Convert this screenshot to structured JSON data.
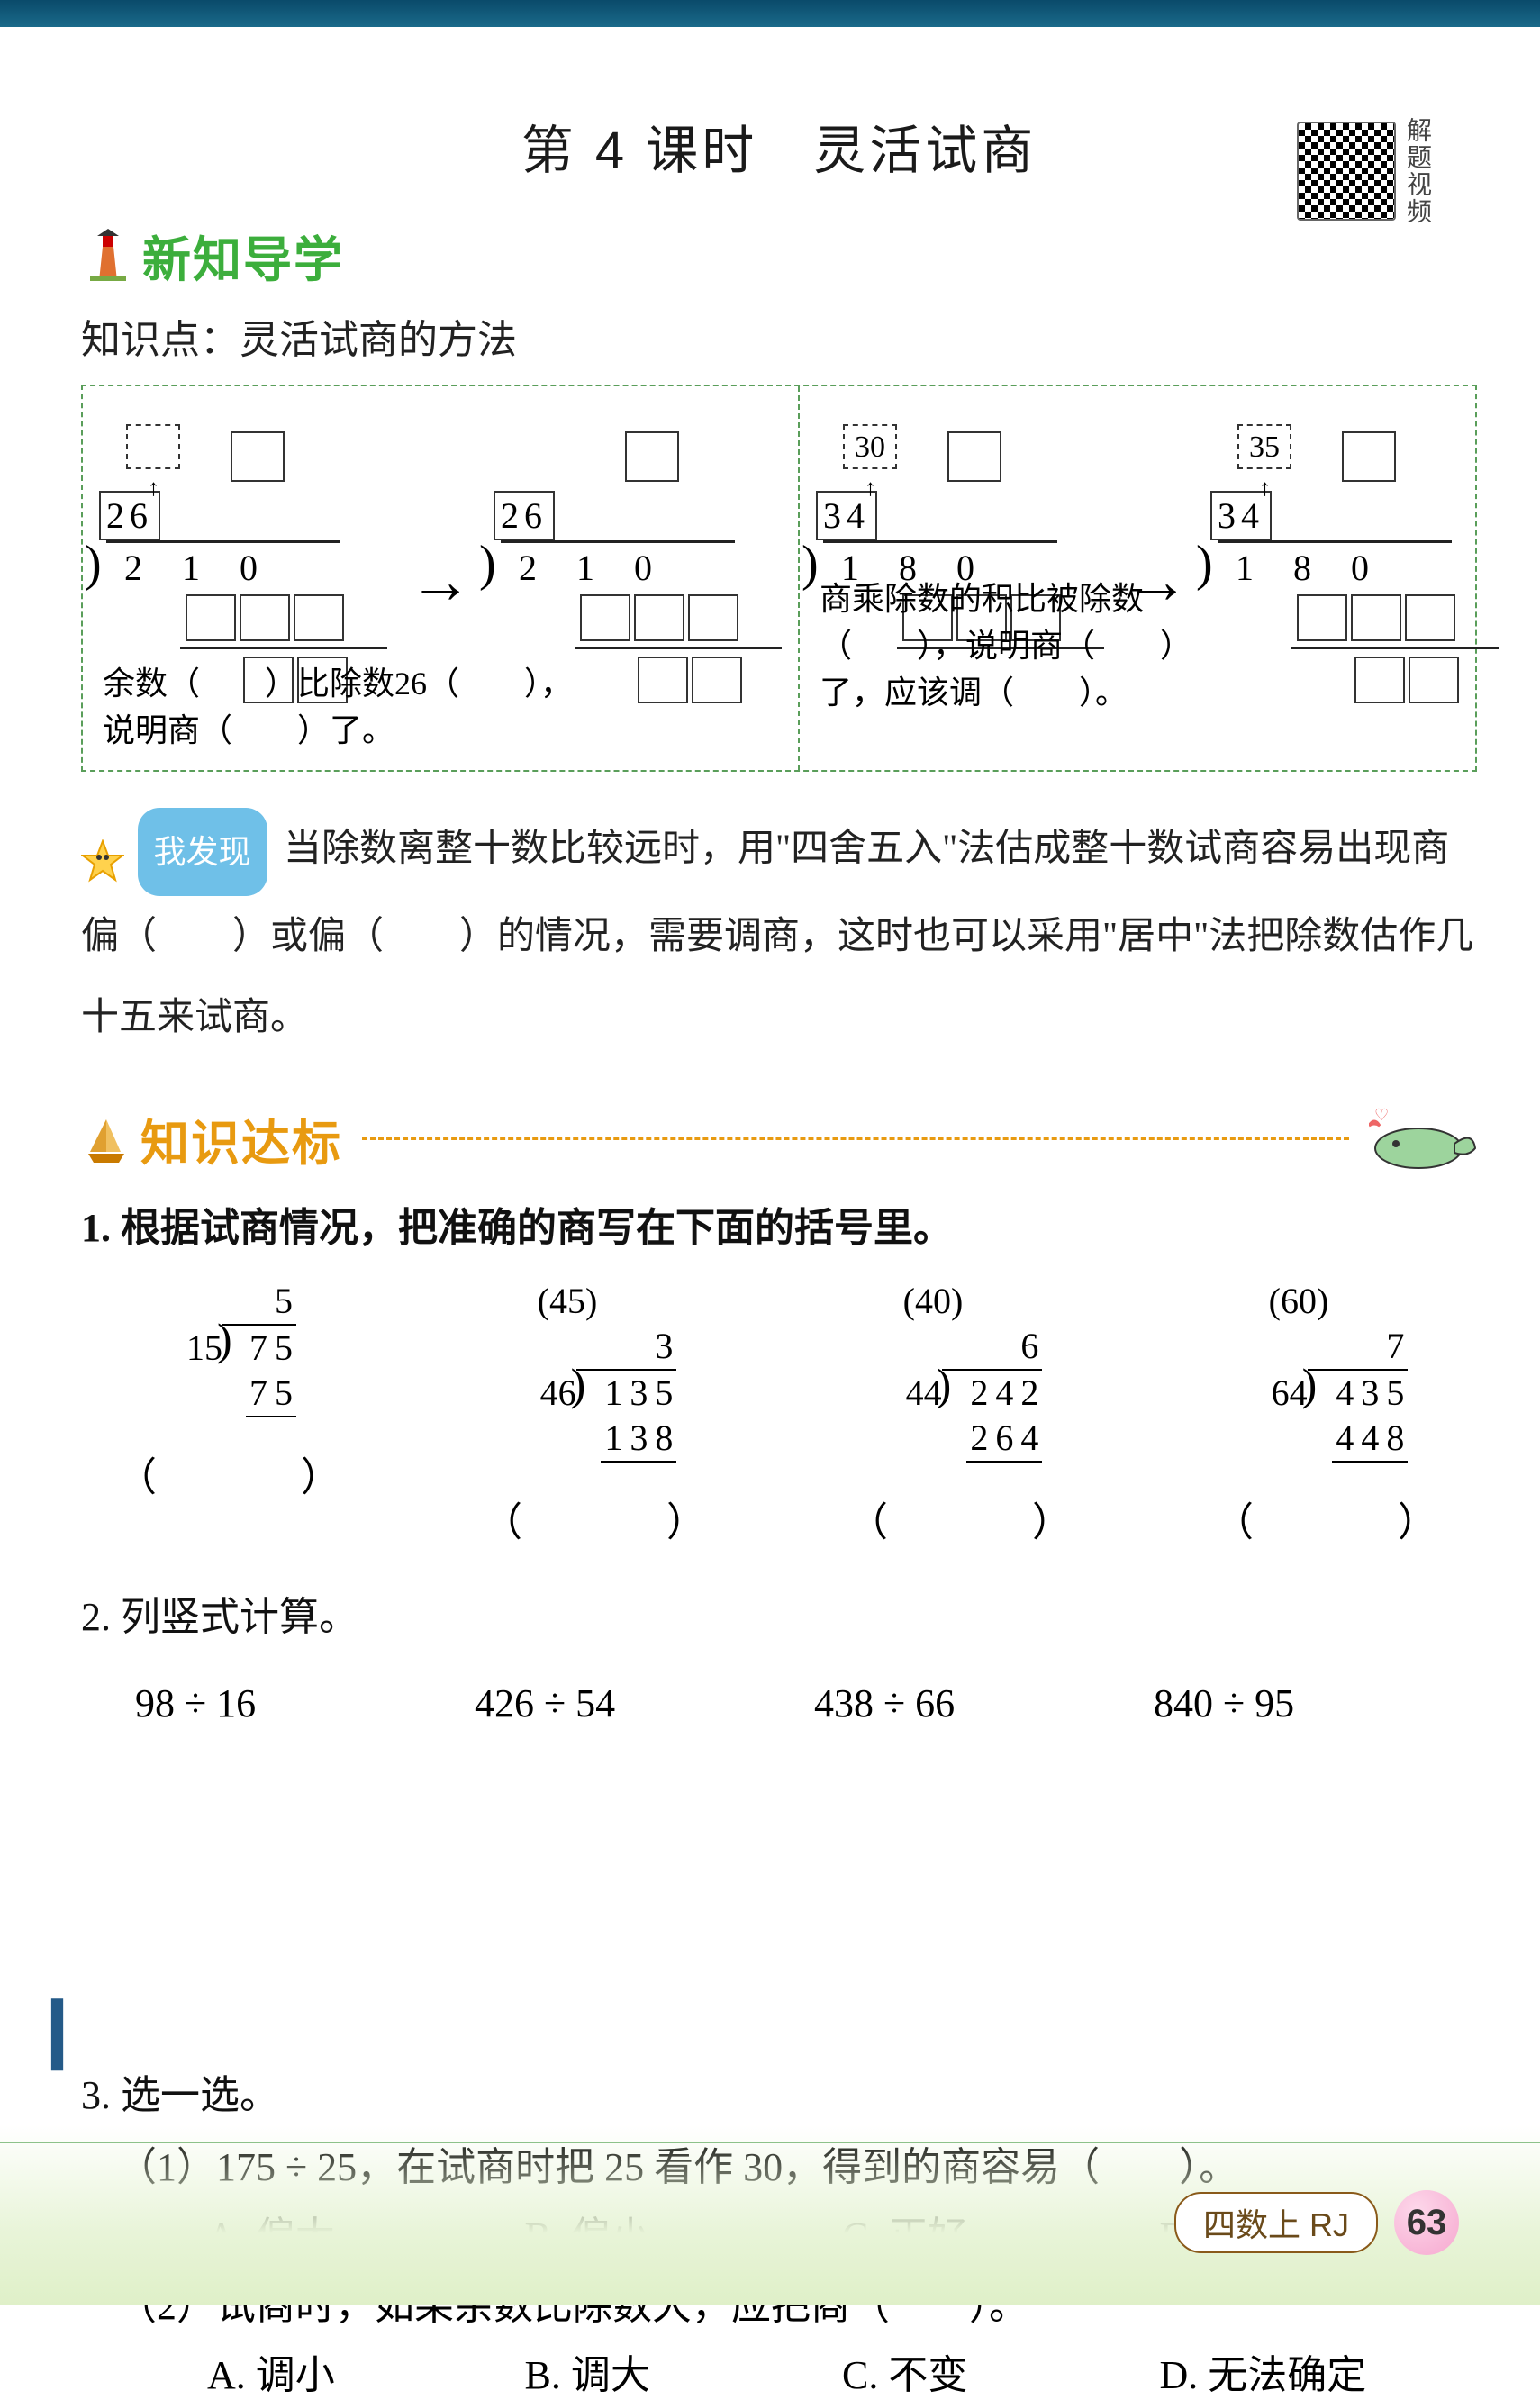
{
  "title": "第 4 课时　灵活试商",
  "qr_label": "解题视频",
  "section1": {
    "title": "新知导学",
    "color": "#3cae3c"
  },
  "kp": "知识点：灵活试商的方法",
  "panel": {
    "left": {
      "divisor": "26",
      "dividend": "210",
      "text_l1": "余数（　　）比除数26（　　），",
      "text_l2": "说明商（　　）了。"
    },
    "right": {
      "hint1": "30",
      "hint2": "35",
      "divisor": "34",
      "dividend": "180",
      "text_l1": "商乘除数的积比被除数",
      "text_l2": "（　　），说明商（　　）",
      "text_l3": "了，应该调（　　）。"
    }
  },
  "discover": {
    "badge": "我发现",
    "text": "当除数离整十数比较远时，用\"四舍五入\"法估成整十数试商容易出现商偏（　　）或偏（　　）的情况，需要调商，这时也可以采用\"居中\"法把除数估作几十五来试商。"
  },
  "section2": {
    "title": "知识达标",
    "color": "#e89a10"
  },
  "q1": {
    "stem": "1. 根据试商情况，把准确的商写在下面的括号里。",
    "items": [
      {
        "hint": "",
        "quo": "5",
        "divisor": "15",
        "dividend": "75",
        "sub": "75"
      },
      {
        "hint": "(45)",
        "quo": "3",
        "divisor": "46",
        "dividend": "135",
        "sub": "138"
      },
      {
        "hint": "(40)",
        "quo": "6",
        "divisor": "44",
        "dividend": "242",
        "sub": "264"
      },
      {
        "hint": "(60)",
        "quo": "7",
        "divisor": "64",
        "dividend": "435",
        "sub": "448"
      }
    ],
    "paren": "（　　）"
  },
  "q2": {
    "stem": "2. 列竖式计算。",
    "items": [
      "98 ÷ 16",
      "426 ÷ 54",
      "438 ÷ 66",
      "840 ÷ 95"
    ]
  },
  "q3": {
    "stem": "3. 选一选。",
    "sub1": "（1）175 ÷ 25，在试商时把 25 看作 30，得到的商容易（　　）。",
    "opts1": [
      "A. 偏大",
      "B. 偏小",
      "C. 正好",
      "D. 无法确定"
    ],
    "sub2": "（2）试商时，如果余数比除数大，应把商（　　）。",
    "opts2": [
      "A. 调小",
      "B. 调大",
      "C. 不变",
      "D. 无法确定"
    ]
  },
  "footer": {
    "pill": "四数上 RJ",
    "page": "63"
  },
  "colors": {
    "green": "#3cae3c",
    "orange": "#e89a10",
    "dash": "#5a9e5a",
    "badge_bg": "#6fc0e8",
    "footer_wave": "#e8f4d8"
  }
}
